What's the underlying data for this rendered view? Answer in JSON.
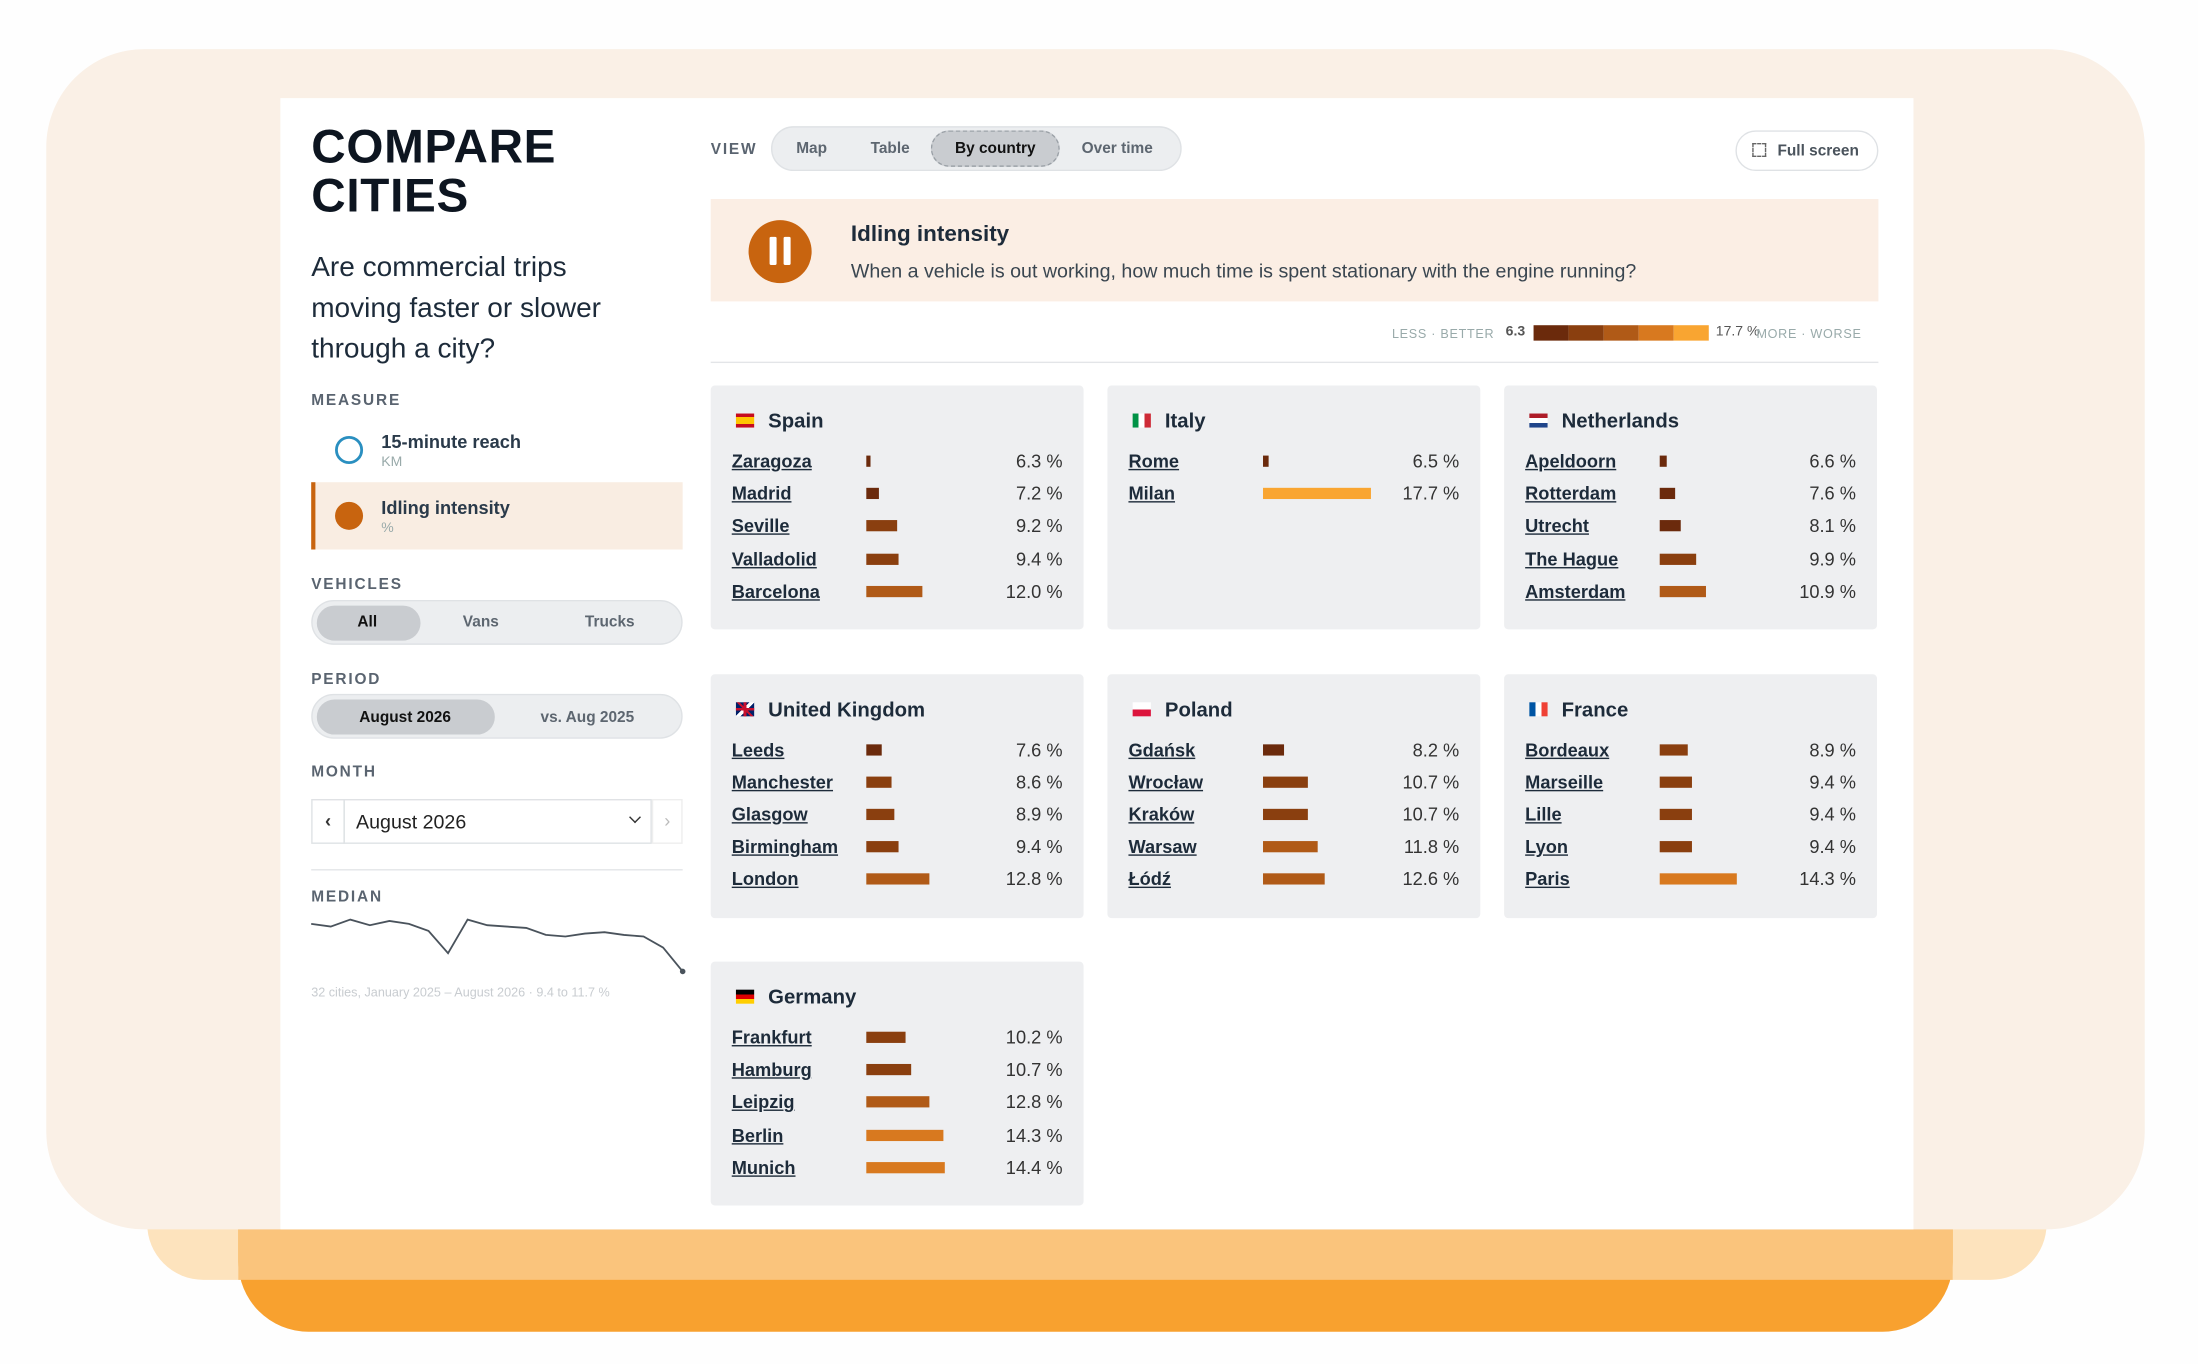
{
  "header": {
    "title": "COMPARE CITIES",
    "question": "Are commercial trips moving faster or slower through a city?"
  },
  "sidebar": {
    "measure_label": "MEASURE",
    "measures": [
      {
        "name": "15-minute reach",
        "unit": "KM"
      },
      {
        "name": "Idling intensity",
        "unit": "%"
      }
    ],
    "vehicles_label": "VEHICLES",
    "vehicles": [
      "All",
      "Vans",
      "Trucks"
    ],
    "period_label": "PERIOD",
    "periods": [
      "August 2026",
      "vs. Aug 2025"
    ],
    "month_label": "MONTH",
    "month": "August 2026",
    "median": {
      "label": "MEDIAN",
      "values": [
        11.51,
        11.39,
        11.7,
        11.45,
        11.64,
        11.51,
        11.2,
        10.21,
        11.7,
        11.45,
        11.39,
        11.33,
        11.02,
        10.95,
        11.08,
        11.14,
        11.02,
        10.95,
        10.46,
        9.4
      ],
      "ylim": [
        9.4,
        11.7
      ],
      "caption": "32 cities, January 2025 – August 2026 · 9.4 to 11.7 %"
    }
  },
  "toolbar": {
    "view_label": "VIEW",
    "views": [
      "Map",
      "Table",
      "By country",
      "Over time"
    ],
    "fullscreen": "Full screen"
  },
  "banner": {
    "title": "Idling intensity",
    "description": "When a vehicle is out working, how much time is spent stationary with the engine running?"
  },
  "legend": {
    "less": "LESS · BETTER",
    "min": 6.3,
    "max": {
      "value": 17.7,
      "label": "17.7 %"
    },
    "more": "MORE · WORSE",
    "colors": [
      "#6b2a0c",
      "#8a3f0f",
      "#b05a17",
      "#d8791f",
      "#f9a531"
    ]
  },
  "countries": [
    {
      "name": "Spain",
      "cities": [
        {
          "name": "Zaragoza",
          "value": 6.3,
          "label": "6.3 %"
        },
        {
          "name": "Madrid",
          "value": 7.2,
          "label": "7.2 %"
        },
        {
          "name": "Seville",
          "value": 9.2,
          "label": "9.2 %"
        },
        {
          "name": "Valladolid",
          "value": 9.4,
          "label": "9.4 %"
        },
        {
          "name": "Barcelona",
          "value": 12.0,
          "label": "12.0 %"
        }
      ]
    },
    {
      "name": "Italy",
      "cities": [
        {
          "name": "Rome",
          "value": 6.5,
          "label": "6.5 %"
        },
        {
          "name": "Milan",
          "value": 17.7,
          "label": "17.7 %"
        }
      ]
    },
    {
      "name": "Netherlands",
      "cities": [
        {
          "name": "Apeldoorn",
          "value": 6.6,
          "label": "6.6 %"
        },
        {
          "name": "Rotterdam",
          "value": 7.6,
          "label": "7.6 %"
        },
        {
          "name": "Utrecht",
          "value": 8.1,
          "label": "8.1 %"
        },
        {
          "name": "The Hague",
          "value": 9.9,
          "label": "9.9 %"
        },
        {
          "name": "Amsterdam",
          "value": 10.9,
          "label": "10.9 %"
        }
      ]
    },
    {
      "name": "United Kingdom",
      "cities": [
        {
          "name": "Leeds",
          "value": 7.6,
          "label": "7.6 %"
        },
        {
          "name": "Manchester",
          "value": 8.6,
          "label": "8.6 %"
        },
        {
          "name": "Glasgow",
          "value": 8.9,
          "label": "8.9 %"
        },
        {
          "name": "Birmingham",
          "value": 9.4,
          "label": "9.4 %"
        },
        {
          "name": "London",
          "value": 12.8,
          "label": "12.8 %"
        }
      ]
    },
    {
      "name": "Poland",
      "cities": [
        {
          "name": "Gdańsk",
          "value": 8.2,
          "label": "8.2 %"
        },
        {
          "name": "Wrocław",
          "value": 10.7,
          "label": "10.7 %"
        },
        {
          "name": "Kraków",
          "value": 10.7,
          "label": "10.7 %"
        },
        {
          "name": "Warsaw",
          "value": 11.8,
          "label": "11.8 %"
        },
        {
          "name": "Łódź",
          "value": 12.6,
          "label": "12.6 %"
        }
      ]
    },
    {
      "name": "France",
      "cities": [
        {
          "name": "Bordeaux",
          "value": 8.9,
          "label": "8.9 %"
        },
        {
          "name": "Marseille",
          "value": 9.4,
          "label": "9.4 %"
        },
        {
          "name": "Lille",
          "value": 9.4,
          "label": "9.4 %"
        },
        {
          "name": "Lyon",
          "value": 9.4,
          "label": "9.4 %"
        },
        {
          "name": "Paris",
          "value": 14.3,
          "label": "14.3 %"
        }
      ]
    },
    {
      "name": "Germany",
      "cities": [
        {
          "name": "Frankfurt",
          "value": 10.2,
          "label": "10.2 %"
        },
        {
          "name": "Hamburg",
          "value": 10.7,
          "label": "10.7 %"
        },
        {
          "name": "Leipzig",
          "value": 12.8,
          "label": "12.8 %"
        },
        {
          "name": "Berlin",
          "value": 14.3,
          "label": "14.3 %"
        },
        {
          "name": "Munich",
          "value": 14.4,
          "label": "14.4 %"
        }
      ]
    }
  ]
}
